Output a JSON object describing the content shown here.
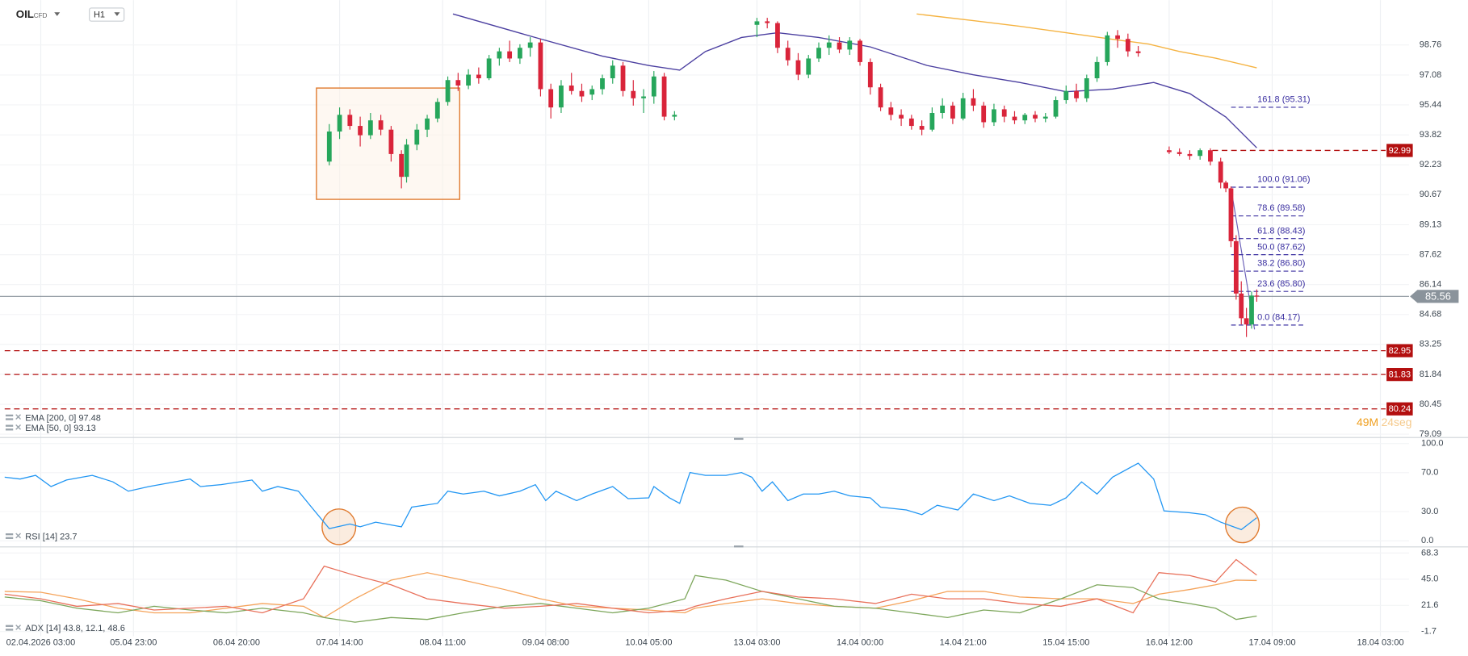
{
  "chart_data": [
    {
      "type": "candlestick",
      "symbol": "OIL",
      "instrument_type": "CFD",
      "timeframe": "H1",
      "log_scale": true,
      "grid": true,
      "xlim": [
        0,
        284
      ],
      "ylim": [
        79.09,
        101.32
      ],
      "xticks": [
        {
          "value": 7,
          "label": "02.04.2026 03:00"
        },
        {
          "value": 25,
          "label": "05.04 23:00"
        },
        {
          "value": 45,
          "label": "06.04 20:00"
        },
        {
          "value": 65,
          "label": "07.04 14:00"
        },
        {
          "value": 85,
          "label": "08.04 11:00"
        },
        {
          "value": 105,
          "label": "09.04 08:00"
        },
        {
          "value": 125,
          "label": "10.04 05:00"
        },
        {
          "value": 146,
          "label": "13.04 03:00"
        },
        {
          "value": 166,
          "label": "14.04 00:00"
        },
        {
          "value": 186,
          "label": "14.04 21:00"
        },
        {
          "value": 206,
          "label": "15.04 15:00"
        },
        {
          "value": 226,
          "label": "16.04 12:00"
        },
        {
          "value": 246,
          "label": "17.04 09:00"
        },
        {
          "value": 267,
          "label": "18.04 03:00"
        }
      ],
      "yticks": [
        98.76,
        97.08,
        95.44,
        93.82,
        92.23,
        90.67,
        89.13,
        87.62,
        86.14,
        84.68,
        83.25,
        81.84,
        80.45,
        79.09
      ],
      "up_color": "#26a65b",
      "down_color": "#d9243a",
      "candles": {
        "x": [
          63,
          65,
          67,
          69,
          71,
          73,
          75,
          77,
          78,
          80,
          82,
          84,
          86,
          88,
          90,
          92,
          94,
          96,
          98,
          100,
          102,
          104,
          106,
          108,
          110,
          112,
          114,
          116,
          118,
          120,
          122,
          124,
          126,
          128,
          130,
          146,
          148,
          150,
          152,
          154,
          156,
          158,
          160,
          162,
          164,
          166,
          168,
          170,
          172,
          174,
          176,
          178,
          180,
          182,
          184,
          186,
          188,
          190,
          192,
          194,
          196,
          198,
          200,
          202,
          204,
          206,
          208,
          210,
          212,
          214,
          216,
          218,
          220,
          226,
          228,
          230,
          232,
          234,
          236,
          237,
          238,
          239,
          240,
          241,
          242,
          243
        ],
        "open": [
          92.4,
          94.0,
          94.9,
          94.3,
          93.8,
          94.6,
          94.1,
          92.8,
          91.6,
          93.3,
          94.1,
          94.7,
          95.6,
          96.8,
          96.5,
          97.1,
          96.9,
          98.0,
          98.4,
          98.0,
          98.6,
          98.9,
          96.3,
          95.3,
          96.5,
          96.2,
          96.0,
          96.3,
          96.9,
          97.6,
          96.2,
          95.8,
          95.9,
          97.0,
          94.8,
          99.9,
          100.1,
          100.0,
          98.6,
          97.9,
          97.1,
          98.0,
          98.6,
          98.9,
          98.5,
          99.0,
          97.8,
          96.4,
          95.3,
          94.9,
          94.7,
          94.3,
          94.1,
          95.0,
          95.4,
          94.7,
          95.8,
          95.4,
          94.5,
          95.2,
          94.8,
          94.6,
          94.9,
          94.7,
          94.8,
          95.7,
          96.2,
          95.8,
          96.9,
          97.8,
          99.3,
          99.1,
          98.4,
          93.0,
          92.9,
          92.8,
          92.7,
          93.0,
          92.4,
          91.3,
          91.0,
          88.3,
          85.7,
          84.5,
          84.2,
          85.6
        ],
        "high": [
          94.4,
          95.3,
          95.2,
          94.8,
          95.0,
          94.9,
          94.3,
          93.0,
          93.6,
          94.4,
          94.9,
          95.8,
          97.0,
          97.2,
          97.4,
          97.5,
          98.2,
          98.6,
          99.0,
          98.8,
          99.2,
          99.1,
          96.6,
          96.8,
          97.2,
          96.6,
          96.5,
          97.1,
          97.9,
          97.8,
          96.8,
          96.3,
          97.3,
          97.2,
          95.1,
          100.3,
          100.3,
          100.1,
          99.0,
          98.3,
          98.2,
          98.9,
          99.3,
          99.2,
          99.2,
          99.1,
          98.0,
          96.6,
          95.6,
          95.2,
          94.9,
          94.6,
          95.3,
          95.8,
          95.6,
          96.1,
          96.3,
          95.6,
          95.5,
          95.4,
          95.1,
          95.0,
          95.1,
          95.0,
          95.9,
          96.5,
          96.6,
          97.1,
          98.1,
          99.5,
          99.6,
          99.4,
          98.7,
          93.2,
          93.1,
          93.0,
          93.1,
          93.1,
          92.6,
          91.4,
          91.1,
          88.6,
          86.3,
          85.0,
          85.8,
          85.9
        ],
        "low": [
          92.2,
          93.6,
          94.1,
          93.2,
          93.6,
          93.8,
          92.4,
          91.0,
          91.3,
          93.0,
          93.7,
          94.5,
          95.4,
          96.2,
          96.3,
          96.6,
          96.8,
          97.6,
          97.8,
          97.7,
          98.1,
          95.9,
          94.7,
          95.0,
          96.0,
          95.6,
          95.7,
          96.0,
          96.6,
          95.9,
          95.4,
          95.0,
          95.5,
          94.6,
          94.6,
          99.2,
          99.7,
          98.3,
          97.6,
          96.8,
          96.9,
          97.8,
          98.2,
          98.3,
          98.2,
          97.6,
          96.0,
          95.1,
          94.6,
          94.3,
          94.1,
          93.8,
          94.0,
          94.7,
          94.4,
          94.6,
          95.1,
          94.2,
          94.3,
          94.5,
          94.4,
          94.4,
          94.5,
          94.5,
          94.7,
          95.5,
          95.6,
          95.6,
          96.7,
          97.6,
          98.6,
          98.1,
          98.1,
          92.8,
          92.7,
          92.5,
          92.5,
          92.2,
          91.0,
          90.8,
          88.0,
          85.4,
          84.2,
          83.6,
          84.0,
          85.3
        ],
        "close": [
          94.0,
          94.9,
          94.3,
          93.8,
          94.6,
          94.1,
          92.8,
          91.6,
          93.3,
          94.1,
          94.7,
          95.6,
          96.8,
          96.5,
          97.1,
          96.9,
          98.0,
          98.4,
          98.0,
          98.6,
          98.9,
          96.3,
          95.3,
          96.5,
          96.2,
          95.9,
          96.3,
          96.9,
          97.6,
          96.2,
          95.8,
          95.9,
          97.0,
          94.8,
          94.9,
          100.1,
          100.0,
          98.6,
          97.9,
          97.1,
          98.0,
          98.6,
          98.9,
          98.5,
          99.0,
          97.8,
          96.4,
          95.3,
          94.9,
          94.7,
          94.3,
          94.1,
          95.0,
          95.4,
          94.7,
          95.8,
          95.4,
          94.5,
          95.2,
          94.8,
          94.6,
          94.9,
          94.7,
          94.8,
          95.7,
          96.2,
          95.8,
          96.9,
          97.8,
          99.3,
          99.1,
          98.4,
          98.3,
          92.9,
          92.8,
          92.7,
          93.0,
          92.4,
          91.3,
          91.0,
          88.3,
          85.7,
          84.5,
          84.2,
          85.6,
          85.56
        ]
      },
      "series": [
        {
          "name": "EMA [200, 0] 97.48",
          "color": "#f5b342",
          "x": [
            177,
            188,
            197,
            206,
            215,
            222,
            228,
            235,
            243
          ],
          "values": [
            100.52,
            100.14,
            99.82,
            99.45,
            99.08,
            98.81,
            98.39,
            98.02,
            97.48
          ]
        },
        {
          "name": "EMA [50, 0] 93.13",
          "color": "#4b3fa0",
          "x": [
            87,
            103,
            116,
            125,
            131,
            136,
            143,
            150,
            158,
            168,
            179,
            188,
            197,
            206,
            215,
            223,
            230,
            237,
            243
          ],
          "values": [
            100.52,
            99.18,
            98.13,
            97.61,
            97.35,
            98.39,
            99.18,
            99.45,
            99.18,
            98.65,
            97.61,
            97.09,
            96.67,
            96.16,
            96.31,
            96.67,
            96.06,
            94.78,
            93.13
          ]
        }
      ],
      "last_price": {
        "value": 85.56,
        "color": "#8a939b"
      },
      "level_color": "#b30f0f",
      "levels": [
        {
          "value": 92.99,
          "extend": "right"
        },
        {
          "value": 82.95,
          "extend": "both"
        },
        {
          "value": 81.83,
          "extend": "both"
        },
        {
          "value": 80.24,
          "extend": "both"
        }
      ],
      "fib_color": "#3a2fa0",
      "fib_levels": [
        {
          "value": 95.31,
          "label": "161.8 (95.31)"
        },
        {
          "value": 91.06,
          "label": "100.0 (91.06)"
        },
        {
          "value": 89.58,
          "label": "78.6 (89.58)"
        },
        {
          "value": 88.43,
          "label": "61.8 (88.43)"
        },
        {
          "value": 87.62,
          "label": "50.0 (87.62)"
        },
        {
          "value": 86.8,
          "label": "38.2 (86.80)"
        },
        {
          "value": 85.8,
          "label": "23.6 (85.80)"
        },
        {
          "value": 84.17,
          "label": "0.0 (84.17)"
        }
      ],
      "countdown": [
        "49M",
        "24seg"
      ]
    },
    {
      "type": "line",
      "legend": "RSI [14] 23.7",
      "grid": true,
      "xlim": [
        0,
        284
      ],
      "ylim": [
        -5.8,
        104.8
      ],
      "yticks": [
        {
          "value": 100,
          "label": "100.0"
        },
        {
          "value": 70,
          "label": "70.0"
        },
        {
          "value": 30,
          "label": "30.0"
        },
        {
          "value": 0,
          "label": "0.0"
        }
      ],
      "x": [
        0,
        3,
        6,
        9,
        12,
        15,
        17,
        21,
        24,
        28,
        32,
        36,
        38,
        42,
        48,
        50,
        53,
        57,
        60,
        63,
        67,
        69,
        72,
        77,
        79,
        84,
        86,
        89,
        93,
        96,
        100,
        103,
        105,
        107,
        111,
        114,
        118,
        121,
        125,
        126,
        129,
        131,
        133,
        136,
        140,
        143,
        145,
        147,
        149,
        152,
        155,
        158,
        161,
        164,
        168,
        170,
        175,
        178,
        181,
        185,
        188,
        192,
        195,
        199,
        203,
        206,
        209,
        212,
        215,
        220,
        223,
        225,
        230,
        233,
        236,
        240,
        243
      ],
      "series": [
        {
          "color": "#2196f3",
          "values": [
            65.4,
            63.5,
            67.3,
            55.8,
            62.5,
            65.4,
            67.3,
            60.6,
            51.0,
            55.8,
            59.6,
            63.5,
            55.8,
            57.7,
            62.5,
            51.0,
            55.8,
            51.0,
            31.7,
            12.5,
            17.3,
            14.4,
            19.2,
            14.4,
            34.6,
            38.5,
            51.0,
            48.1,
            51.0,
            46.2,
            51.0,
            57.7,
            41.3,
            51.0,
            41.3,
            48.1,
            55.8,
            43.3,
            44.2,
            55.8,
            44.2,
            38.5,
            70.2,
            67.3,
            67.3,
            70.2,
            65.4,
            51.0,
            60.6,
            41.3,
            48.1,
            48.1,
            51.0,
            46.2,
            44.2,
            34.6,
            31.7,
            26.9,
            36.5,
            31.7,
            48.1,
            41.3,
            46.2,
            38.5,
            36.5,
            44.2,
            60.6,
            48.1,
            65.4,
            79.8,
            63.5,
            30.8,
            28.8,
            26.9,
            19.2,
            11.5,
            23.7
          ]
        }
      ]
    },
    {
      "type": "line",
      "legend": "ADX [14] 43.8, 12.1, 48.6",
      "grid": true,
      "xlim": [
        0,
        284
      ],
      "ylim": [
        -5.9,
        72.5
      ],
      "yticks": [
        68.3,
        {
          "value": 45,
          "label": "45.0"
        },
        21.6,
        -1.7
      ],
      "x": [
        0,
        7,
        14,
        22,
        29,
        36,
        43,
        50,
        58,
        62,
        68,
        75,
        82,
        89,
        97,
        104,
        111,
        118,
        125,
        132,
        134,
        140,
        147,
        154,
        161,
        169,
        176,
        183,
        190,
        197,
        205,
        212,
        219,
        224,
        230,
        235,
        239,
        243
      ],
      "series": [
        {
          "color": "#f5a35a",
          "values": [
            34.1,
            33.3,
            27.5,
            19.1,
            15.0,
            15.0,
            19.1,
            23.3,
            20.8,
            10.8,
            27.5,
            44.1,
            50.8,
            44.1,
            35.8,
            27.5,
            20.8,
            19.1,
            17.5,
            15.0,
            19.1,
            23.3,
            27.5,
            23.3,
            20.8,
            19.1,
            25.8,
            34.1,
            34.1,
            29.1,
            27.5,
            27.5,
            23.3,
            31.6,
            35.8,
            40.0,
            44.1,
            43.8
          ]
        },
        {
          "color": "#7ca65a",
          "values": [
            29.1,
            25.8,
            19.1,
            15.0,
            20.8,
            17.5,
            15.0,
            19.1,
            15.0,
            10.8,
            6.6,
            10.8,
            9.1,
            15.0,
            20.8,
            23.3,
            19.1,
            15.0,
            19.1,
            27.5,
            48.3,
            44.1,
            34.1,
            27.5,
            20.8,
            19.1,
            15.0,
            10.8,
            17.5,
            15.0,
            27.5,
            40.0,
            37.5,
            27.5,
            23.3,
            19.1,
            9.1,
            12.1
          ]
        },
        {
          "color": "#e8705a",
          "values": [
            31.6,
            27.5,
            20.8,
            23.3,
            17.5,
            19.1,
            20.8,
            15.0,
            27.5,
            56.6,
            48.3,
            40.0,
            27.5,
            23.3,
            19.1,
            20.8,
            23.3,
            19.1,
            15.0,
            17.5,
            20.8,
            27.5,
            34.1,
            29.1,
            27.5,
            23.3,
            31.6,
            27.5,
            27.5,
            23.3,
            20.8,
            27.5,
            15.0,
            50.8,
            48.3,
            42.5,
            62.5,
            48.6
          ]
        }
      ]
    }
  ]
}
